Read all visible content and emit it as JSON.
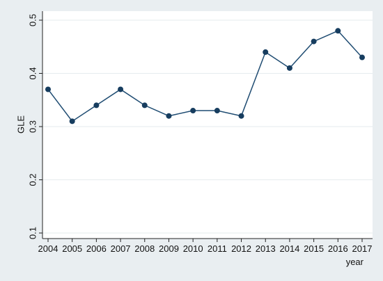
{
  "chart_data": {
    "type": "line",
    "title": "",
    "xlabel": "year",
    "ylabel": "GLE",
    "x": [
      "2004",
      "2005",
      "2006",
      "2007",
      "2008",
      "2009",
      "2010",
      "2011",
      "2012",
      "2013",
      "2014",
      "2015",
      "2016",
      "2017"
    ],
    "series": [
      {
        "values": [
          0.37,
          0.31,
          0.34,
          0.37,
          0.34,
          0.32,
          0.33,
          0.33,
          0.32,
          0.44,
          0.41,
          0.46,
          0.48,
          0.43
        ]
      }
    ],
    "ylim": [
      0.1,
      0.5
    ],
    "yticks": [
      "0.1",
      "0.2",
      "0.3",
      "0.4",
      "0.5"
    ],
    "grid": true,
    "colors": {
      "background": "#e9eef1",
      "plot_background": "#ffffff",
      "grid": "#e6ebee",
      "line": "#1f4c72",
      "marker": "#173d5f"
    }
  }
}
